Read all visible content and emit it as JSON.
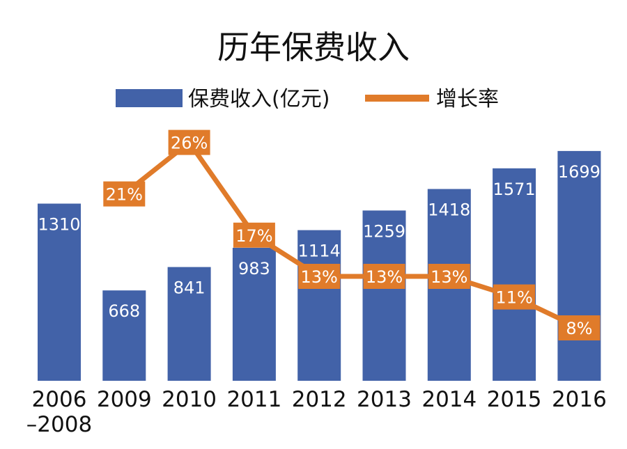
{
  "chart_data": {
    "type": "bar",
    "title": "历年保费收入",
    "categories": [
      [
        "2006",
        "–2008"
      ],
      [
        "2009"
      ],
      [
        "2010"
      ],
      [
        "2011"
      ],
      [
        "2012"
      ],
      [
        "2013"
      ],
      [
        "2014"
      ],
      [
        "2015"
      ],
      [
        "2016"
      ]
    ],
    "series": [
      {
        "name": "保费收入(亿元)",
        "kind": "bar",
        "values": [
          1310,
          668,
          841,
          983,
          1114,
          1259,
          1418,
          1571,
          1699
        ],
        "labels": [
          "1310",
          "668",
          "841",
          "983",
          "1114",
          "1259",
          "1418",
          "1571",
          "1699"
        ]
      },
      {
        "name": "增长率",
        "kind": "line",
        "values": [
          null,
          21,
          26,
          17,
          13,
          13,
          13,
          11,
          8
        ],
        "labels": [
          "",
          "21%",
          "26%",
          "17%",
          "13%",
          "13%",
          "13%",
          "11%",
          "8%"
        ]
      }
    ],
    "ylim": [
      0,
      1750
    ],
    "ylim_rate": [
      0,
      29
    ],
    "grid": false,
    "legend_position": "top"
  },
  "colors": {
    "bar": "#4262a8",
    "line": "#e07b2a",
    "text": "#111111"
  }
}
